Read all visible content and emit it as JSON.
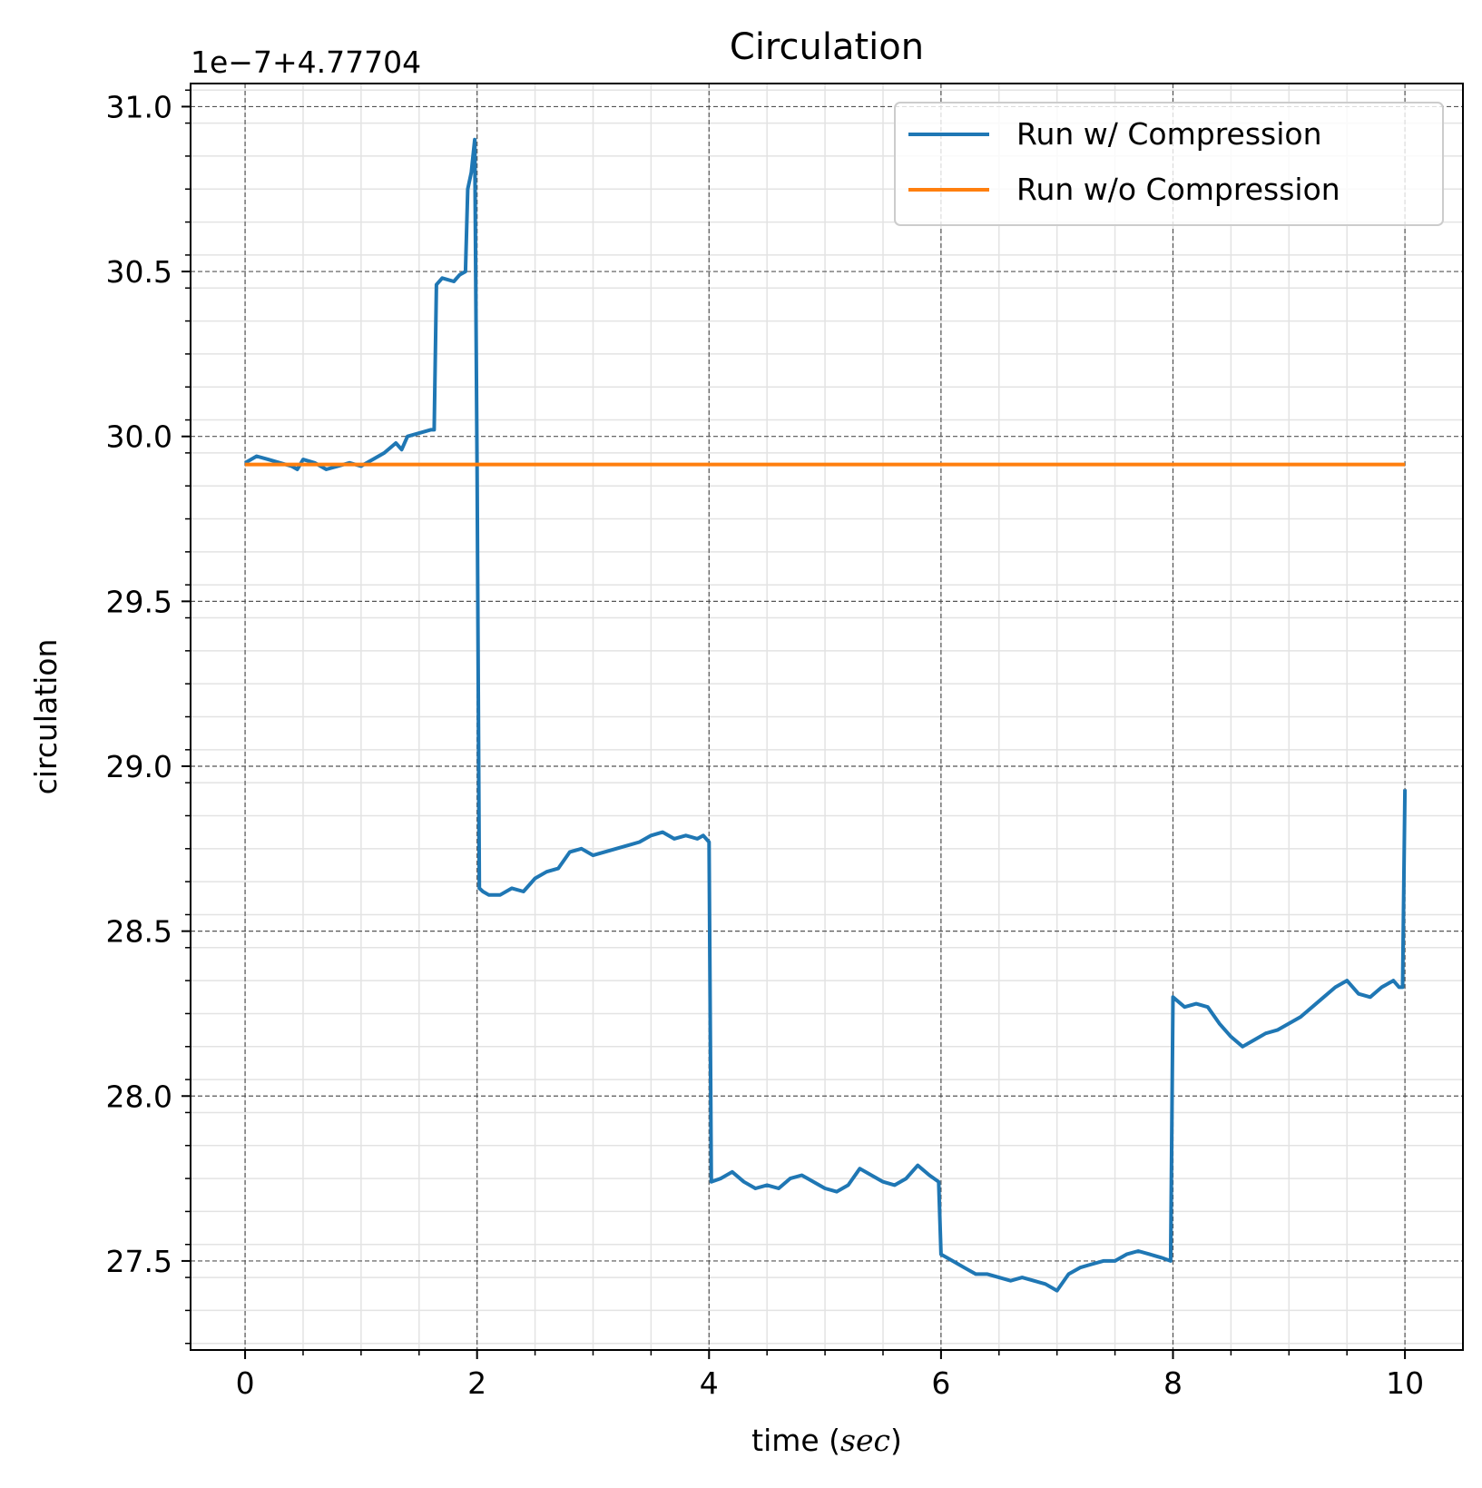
{
  "chart_data": {
    "type": "line",
    "title": "Circulation",
    "xlabel": "time (",
    "xlabel_italic": "sec",
    "xlabel_suffix": ")",
    "ylabel": "circulation",
    "offset_text": "1e−7+4.77704",
    "xlim": [
      -0.47,
      10.5
    ],
    "ylim": [
      27.23,
      31.07
    ],
    "xticks": [
      0,
      2,
      4,
      6,
      8,
      10
    ],
    "xtick_labels": [
      "0",
      "2",
      "4",
      "6",
      "8",
      "10"
    ],
    "yticks": [
      27.5,
      28.0,
      28.5,
      29.0,
      29.5,
      30.0,
      30.5,
      31.0
    ],
    "ytick_labels": [
      "27.5",
      "28.0",
      "28.5",
      "29.0",
      "29.5",
      "30.0",
      "30.5",
      "31.0"
    ],
    "grid": true,
    "legend_position": "top-right",
    "colors": {
      "compression": "#1f77b4",
      "no_compression": "#ff7f0e"
    },
    "series": [
      {
        "name": "Run w/ Compression",
        "x": [
          0,
          0.1,
          0.2,
          0.3,
          0.4,
          0.45,
          0.5,
          0.6,
          0.65,
          0.7,
          0.8,
          0.9,
          1.0,
          1.1,
          1.2,
          1.3,
          1.35,
          1.4,
          1.5,
          1.6,
          1.63,
          1.65,
          1.7,
          1.8,
          1.85,
          1.9,
          1.92,
          1.95,
          1.98,
          2.0,
          2.02,
          2.05,
          2.1,
          2.2,
          2.3,
          2.4,
          2.5,
          2.6,
          2.7,
          2.8,
          2.9,
          3.0,
          3.1,
          3.2,
          3.3,
          3.4,
          3.5,
          3.6,
          3.7,
          3.8,
          3.9,
          3.95,
          4.0,
          4.02,
          4.1,
          4.2,
          4.3,
          4.4,
          4.5,
          4.6,
          4.7,
          4.8,
          4.9,
          5.0,
          5.1,
          5.2,
          5.3,
          5.4,
          5.5,
          5.6,
          5.7,
          5.8,
          5.9,
          5.98,
          6.0,
          6.1,
          6.2,
          6.3,
          6.4,
          6.5,
          6.6,
          6.7,
          6.8,
          6.9,
          7.0,
          7.1,
          7.2,
          7.3,
          7.4,
          7.5,
          7.6,
          7.7,
          7.8,
          7.9,
          7.98,
          8.0,
          8.1,
          8.2,
          8.3,
          8.4,
          8.5,
          8.6,
          8.7,
          8.8,
          8.9,
          9.0,
          9.1,
          9.2,
          9.3,
          9.4,
          9.5,
          9.6,
          9.7,
          9.8,
          9.9,
          9.95,
          9.98,
          10.0
        ],
        "y": [
          29.92,
          29.94,
          29.93,
          29.92,
          29.91,
          29.9,
          29.93,
          29.92,
          29.91,
          29.9,
          29.91,
          29.92,
          29.91,
          29.93,
          29.95,
          29.98,
          29.96,
          30.0,
          30.01,
          30.02,
          30.02,
          30.46,
          30.48,
          30.47,
          30.49,
          30.5,
          30.75,
          30.8,
          30.9,
          29.9,
          28.63,
          28.62,
          28.61,
          28.61,
          28.63,
          28.62,
          28.66,
          28.68,
          28.69,
          28.74,
          28.75,
          28.73,
          28.74,
          28.75,
          28.76,
          28.77,
          28.79,
          28.8,
          28.78,
          28.79,
          28.78,
          28.79,
          28.77,
          27.74,
          27.75,
          27.77,
          27.74,
          27.72,
          27.73,
          27.72,
          27.75,
          27.76,
          27.74,
          27.72,
          27.71,
          27.73,
          27.78,
          27.76,
          27.74,
          27.73,
          27.75,
          27.79,
          27.76,
          27.74,
          27.52,
          27.5,
          27.48,
          27.46,
          27.46,
          27.45,
          27.44,
          27.45,
          27.44,
          27.43,
          27.41,
          27.46,
          27.48,
          27.49,
          27.5,
          27.5,
          27.52,
          27.53,
          27.52,
          27.51,
          27.5,
          28.3,
          28.27,
          28.28,
          28.27,
          28.22,
          28.18,
          28.15,
          28.17,
          28.19,
          28.2,
          28.22,
          28.24,
          28.27,
          28.3,
          28.33,
          28.35,
          28.31,
          28.3,
          28.33,
          28.35,
          28.33,
          28.33,
          28.93
        ]
      },
      {
        "name": "Run w/o Compression",
        "x": [
          0,
          10
        ],
        "y": [
          29.915,
          29.915
        ]
      }
    ]
  }
}
